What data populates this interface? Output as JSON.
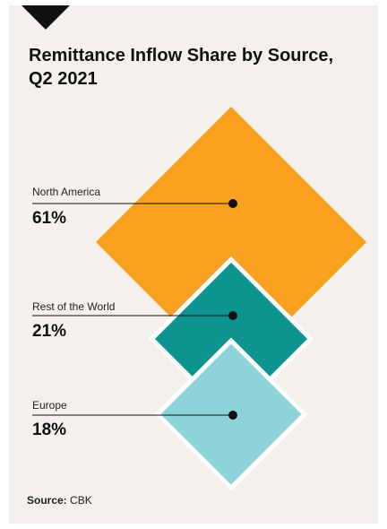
{
  "chart_data": {
    "type": "pie",
    "title": "Remittance Inflow Share by Source, Q2 2021",
    "unit": "%",
    "categories": [
      "North America",
      "Rest of the World",
      "Europe"
    ],
    "values": [
      61,
      21,
      18
    ],
    "value_labels": [
      "61%",
      "21%",
      "18%"
    ],
    "colors": [
      "#f8a120",
      "#0e9490",
      "#8cd3d8"
    ]
  },
  "source": {
    "label": "Source:",
    "value": "CBK"
  },
  "colors": {
    "background": "#f4f1ed",
    "corner_marker": "#111111",
    "label_line": "#111111"
  }
}
